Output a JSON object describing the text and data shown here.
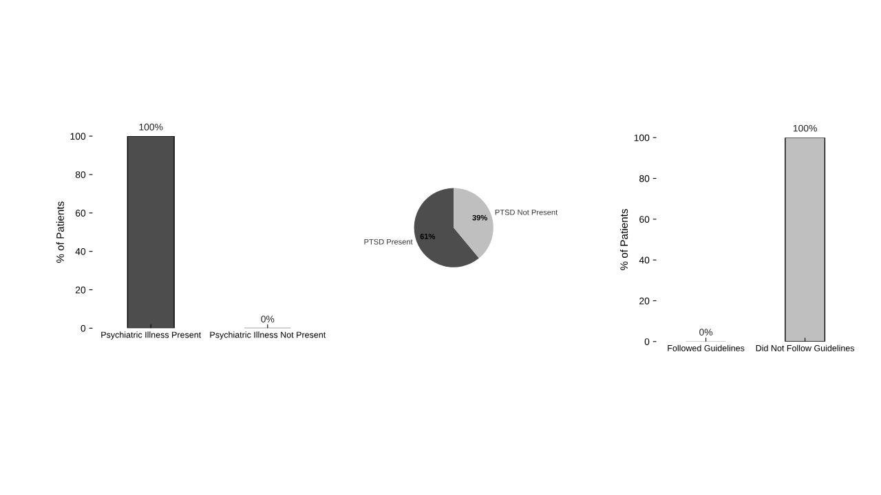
{
  "chart_data": [
    {
      "type": "bar",
      "ylabel": "% of Patients",
      "categories": [
        "Psychiatric Illness Present",
        "Psychiatric Illness Not Present"
      ],
      "values": [
        100,
        0
      ],
      "color": "#4d4d4d",
      "value_labels": [
        "100%",
        "0%"
      ],
      "ylim": [
        0,
        100
      ],
      "yticks": [
        0,
        20,
        40,
        60,
        80,
        100
      ],
      "grid": false,
      "legend": false
    },
    {
      "type": "pie",
      "categories": [
        "PTSD Present",
        "PTSD Not Present"
      ],
      "values": [
        61,
        39
      ],
      "colors": [
        "#4d4d4d",
        "#bfbfbf"
      ],
      "value_labels": [
        "61%",
        "39%"
      ]
    },
    {
      "type": "bar",
      "ylabel": "% of Patients",
      "categories": [
        "Followed Guidelines",
        "Did Not Follow Guidelines"
      ],
      "values": [
        0,
        100
      ],
      "color": "#bfbfbf",
      "value_labels": [
        "0%",
        "100%"
      ],
      "ylim": [
        0,
        100
      ],
      "yticks": [
        0,
        20,
        40,
        60,
        80,
        100
      ],
      "grid": false,
      "legend": false
    }
  ]
}
